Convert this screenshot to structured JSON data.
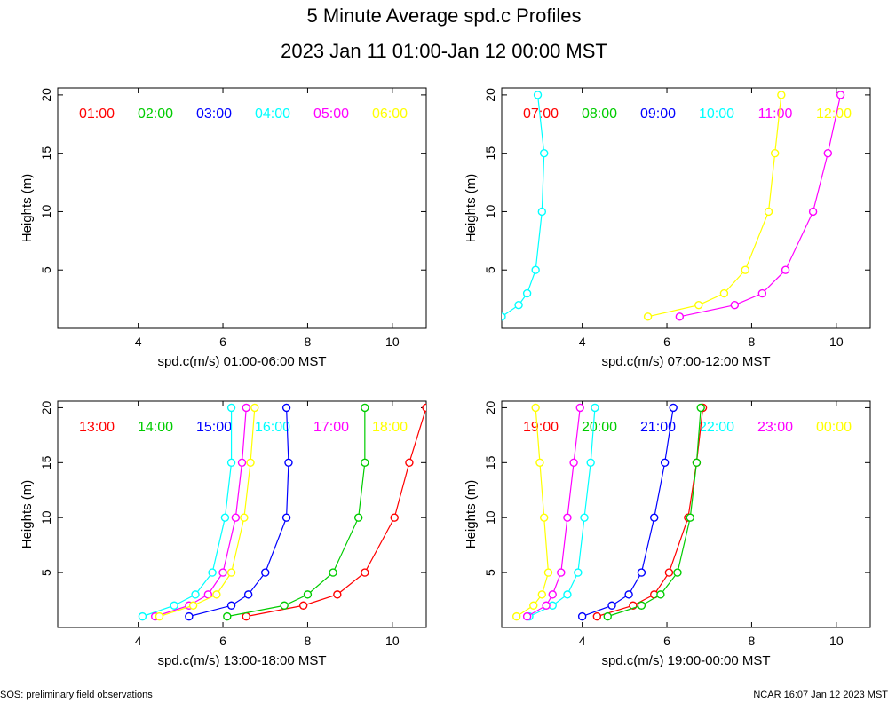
{
  "title": "5 Minute Average spd.c Profiles",
  "subtitle": "2023 Jan 11 01:00-Jan 12 00:00 MST",
  "footer_left": "SOS: preliminary field observations",
  "footer_right": "NCAR 16:07 Jan 12 2023 MST",
  "colors": [
    "#ff0000",
    "#00cc00",
    "#0000ff",
    "#00ffff",
    "#ff00ff",
    "#ffff00"
  ],
  "chart_data": [
    {
      "type": "line",
      "xlabel": "spd.c(m/s) 01:00-06:00 MST",
      "ylabel": "Heights (m)",
      "xlim": [
        2.1,
        10.8
      ],
      "ylim": [
        0,
        20.6
      ],
      "xticks": [
        4,
        6,
        8,
        10
      ],
      "yticks": [
        5,
        10,
        15,
        20
      ],
      "legend": [
        "01:00",
        "02:00",
        "03:00",
        "04:00",
        "05:00",
        "06:00"
      ],
      "series": []
    },
    {
      "type": "line",
      "xlabel": "spd.c(m/s) 07:00-12:00 MST",
      "ylabel": "Heights (m)",
      "xlim": [
        2.1,
        10.8
      ],
      "ylim": [
        0,
        20.6
      ],
      "xticks": [
        4,
        6,
        8,
        10
      ],
      "yticks": [
        5,
        10,
        15,
        20
      ],
      "legend": [
        "07:00",
        "08:00",
        "09:00",
        "10:00",
        "11:00",
        "12:00"
      ],
      "series": [
        {
          "name": "10:00",
          "color_index": 3,
          "x": [
            2.1,
            2.5,
            2.7,
            2.9,
            3.05,
            3.1,
            2.95
          ],
          "y": [
            1,
            2,
            3,
            5,
            10,
            15,
            20
          ]
        },
        {
          "name": "11:00",
          "color_index": 4,
          "x": [
            6.3,
            7.6,
            8.25,
            8.8,
            9.45,
            9.8,
            10.1
          ],
          "y": [
            1,
            2,
            3,
            5,
            10,
            15,
            20
          ]
        },
        {
          "name": "12:00",
          "color_index": 5,
          "x": [
            5.55,
            6.75,
            7.35,
            7.85,
            8.4,
            8.55,
            8.7
          ],
          "y": [
            1,
            2,
            3,
            5,
            10,
            15,
            20
          ]
        }
      ]
    },
    {
      "type": "line",
      "xlabel": "spd.c(m/s) 13:00-18:00 MST",
      "ylabel": "Heights (m)",
      "xlim": [
        2.1,
        10.8
      ],
      "ylim": [
        0,
        20.6
      ],
      "xticks": [
        4,
        6,
        8,
        10
      ],
      "yticks": [
        5,
        10,
        15,
        20
      ],
      "legend": [
        "13:00",
        "14:00",
        "15:00",
        "16:00",
        "17:00",
        "18:00"
      ],
      "series": [
        {
          "name": "13:00",
          "color_index": 0,
          "x": [
            6.55,
            7.9,
            8.7,
            9.35,
            10.05,
            10.4,
            10.8
          ],
          "y": [
            1,
            2,
            3,
            5,
            10,
            15,
            20
          ]
        },
        {
          "name": "14:00",
          "color_index": 1,
          "x": [
            6.1,
            7.45,
            8.0,
            8.6,
            9.2,
            9.35,
            9.35
          ],
          "y": [
            1,
            2,
            3,
            5,
            10,
            15,
            20
          ]
        },
        {
          "name": "15:00",
          "color_index": 2,
          "x": [
            5.2,
            6.2,
            6.6,
            7.0,
            7.5,
            7.55,
            7.5
          ],
          "y": [
            1,
            2,
            3,
            5,
            10,
            15,
            20
          ]
        },
        {
          "name": "16:00",
          "color_index": 3,
          "x": [
            4.1,
            4.85,
            5.35,
            5.75,
            6.05,
            6.2,
            6.2
          ],
          "y": [
            1,
            2,
            3,
            5,
            10,
            15,
            20
          ]
        },
        {
          "name": "17:00",
          "color_index": 4,
          "x": [
            4.4,
            5.2,
            5.65,
            6.0,
            6.3,
            6.45,
            6.55
          ],
          "y": [
            1,
            2,
            3,
            5,
            10,
            15,
            20
          ]
        },
        {
          "name": "18:00",
          "color_index": 5,
          "x": [
            4.5,
            5.3,
            5.85,
            6.2,
            6.5,
            6.65,
            6.75
          ],
          "y": [
            1,
            2,
            3,
            5,
            10,
            15,
            20
          ]
        }
      ]
    },
    {
      "type": "line",
      "xlabel": "spd.c(m/s) 19:00-00:00 MST",
      "ylabel": "Heights (m)",
      "xlim": [
        2.1,
        10.8
      ],
      "ylim": [
        0,
        20.6
      ],
      "xticks": [
        4,
        6,
        8,
        10
      ],
      "yticks": [
        5,
        10,
        15,
        20
      ],
      "legend": [
        "19:00",
        "20:00",
        "21:00",
        "22:00",
        "23:00",
        "00:00"
      ],
      "series": [
        {
          "name": "19:00",
          "color_index": 0,
          "x": [
            4.35,
            5.2,
            5.7,
            6.05,
            6.5,
            6.7,
            6.85
          ],
          "y": [
            1,
            2,
            3,
            5,
            10,
            15,
            20
          ]
        },
        {
          "name": "20:00",
          "color_index": 1,
          "x": [
            4.6,
            5.4,
            5.85,
            6.25,
            6.55,
            6.7,
            6.8
          ],
          "y": [
            1,
            2,
            3,
            5,
            10,
            15,
            20
          ]
        },
        {
          "name": "21:00",
          "color_index": 2,
          "x": [
            4.0,
            4.7,
            5.1,
            5.4,
            5.7,
            5.95,
            6.15
          ],
          "y": [
            1,
            2,
            3,
            5,
            10,
            15,
            20
          ]
        },
        {
          "name": "22:00",
          "color_index": 3,
          "x": [
            2.75,
            3.3,
            3.65,
            3.9,
            4.05,
            4.2,
            4.3
          ],
          "y": [
            1,
            2,
            3,
            5,
            10,
            15,
            20
          ]
        },
        {
          "name": "23:00",
          "color_index": 4,
          "x": [
            2.7,
            3.15,
            3.3,
            3.5,
            3.65,
            3.8,
            3.95
          ],
          "y": [
            1,
            2,
            3,
            5,
            10,
            15,
            20
          ]
        },
        {
          "name": "00:00",
          "color_index": 5,
          "x": [
            2.45,
            2.85,
            3.05,
            3.2,
            3.1,
            3.0,
            2.9
          ],
          "y": [
            1,
            2,
            3,
            5,
            10,
            15,
            20
          ]
        }
      ]
    }
  ]
}
